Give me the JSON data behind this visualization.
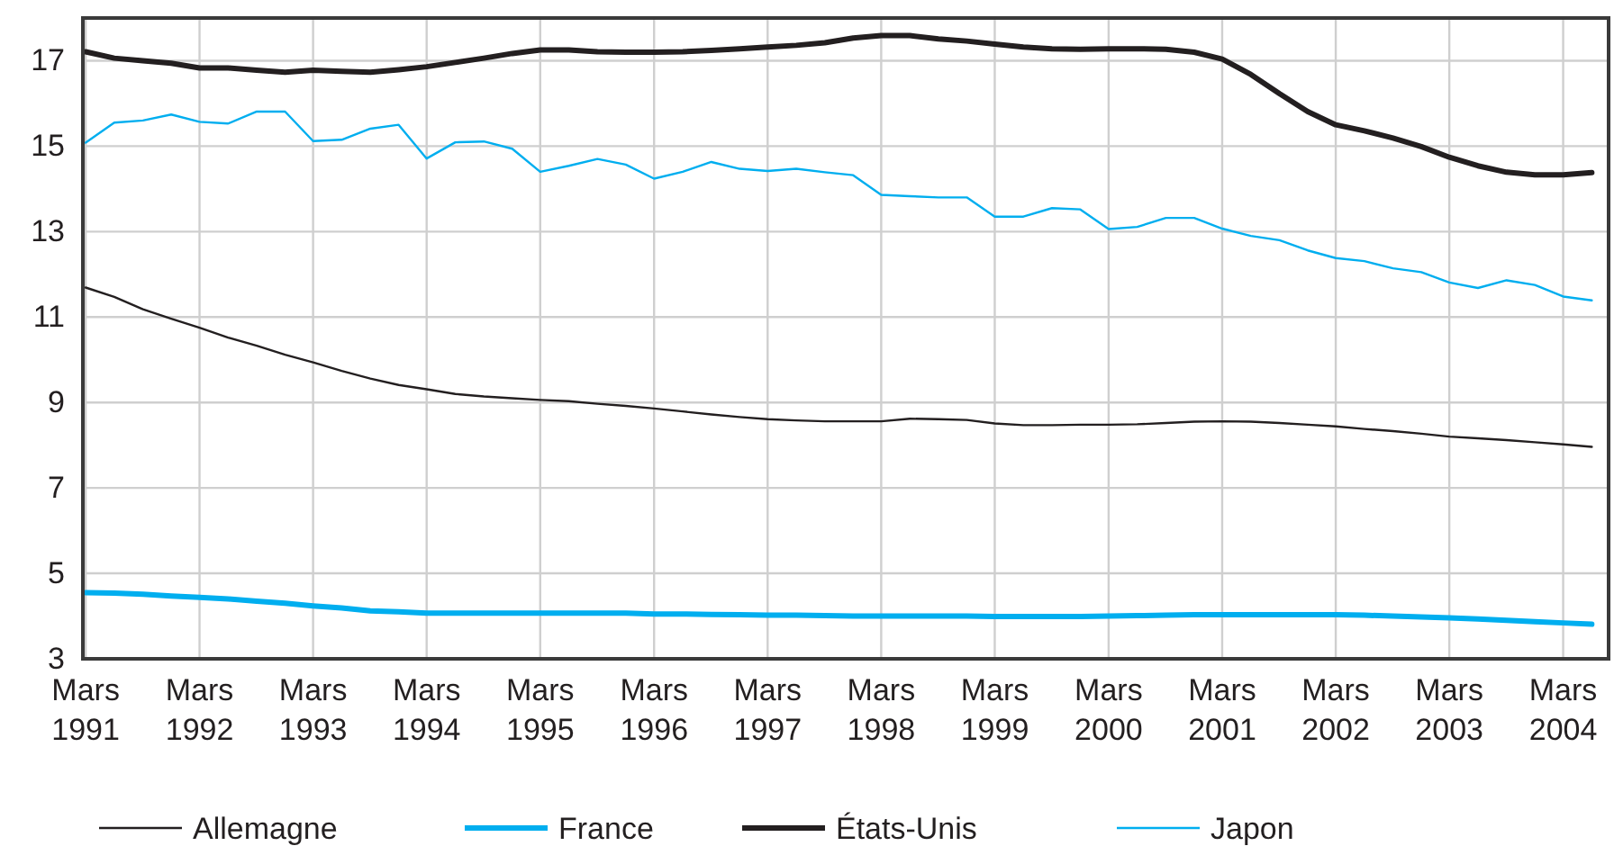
{
  "chart_data": {
    "type": "line",
    "x": [
      "1991-03",
      "1991-06",
      "1991-09",
      "1991-12",
      "1992-03",
      "1992-06",
      "1992-09",
      "1992-12",
      "1993-03",
      "1993-06",
      "1993-09",
      "1993-12",
      "1994-03",
      "1994-06",
      "1994-09",
      "1994-12",
      "1995-03",
      "1995-06",
      "1995-09",
      "1995-12",
      "1996-03",
      "1996-06",
      "1996-09",
      "1996-12",
      "1997-03",
      "1997-06",
      "1997-09",
      "1997-12",
      "1998-03",
      "1998-06",
      "1998-09",
      "1998-12",
      "1999-03",
      "1999-06",
      "1999-09",
      "1999-12",
      "2000-03",
      "2000-06",
      "2000-09",
      "2000-12",
      "2001-03",
      "2001-06",
      "2001-09",
      "2001-12",
      "2002-03",
      "2002-06",
      "2002-09",
      "2002-12",
      "2003-03",
      "2003-06",
      "2003-09",
      "2003-12",
      "2004-03",
      "2004-06"
    ],
    "series": [
      {
        "name": "Allemagne",
        "color": "#231f20",
        "values": [
          11.69,
          11.47,
          11.18,
          10.96,
          10.75,
          10.52,
          10.33,
          10.12,
          9.94,
          9.74,
          9.56,
          9.41,
          9.31,
          9.2,
          9.14,
          9.1,
          9.06,
          9.03,
          8.97,
          8.92,
          8.86,
          8.79,
          8.72,
          8.66,
          8.61,
          8.58,
          8.56,
          8.56,
          8.56,
          8.62,
          8.61,
          8.59,
          8.51,
          8.47,
          8.47,
          8.48,
          8.48,
          8.49,
          8.52,
          8.55,
          8.56,
          8.55,
          8.52,
          8.48,
          8.44,
          8.38,
          8.33,
          8.27,
          8.2,
          8.16,
          8.12,
          8.07,
          8.02,
          7.96
        ]
      },
      {
        "name": "France",
        "color": "#00aeef",
        "values": [
          4.55,
          4.54,
          4.51,
          4.47,
          4.44,
          4.4,
          4.35,
          4.3,
          4.24,
          4.19,
          4.12,
          4.1,
          4.07,
          4.07,
          4.07,
          4.07,
          4.07,
          4.07,
          4.07,
          4.07,
          4.05,
          4.05,
          4.04,
          4.03,
          4.02,
          4.02,
          4.01,
          4.0,
          4.0,
          4.0,
          4.0,
          4.0,
          3.99,
          3.99,
          3.99,
          3.99,
          4.0,
          4.01,
          4.02,
          4.03,
          4.03,
          4.03,
          4.03,
          4.03,
          4.03,
          4.02,
          4.0,
          3.98,
          3.96,
          3.93,
          3.9,
          3.87,
          3.84,
          3.81
        ]
      },
      {
        "name": "États-Unis",
        "color": "#231f20",
        "values": [
          17.21,
          17.06,
          17.0,
          16.94,
          16.83,
          16.83,
          16.78,
          16.73,
          16.78,
          16.75,
          16.73,
          16.79,
          16.86,
          16.96,
          17.06,
          17.17,
          17.25,
          17.25,
          17.21,
          17.2,
          17.2,
          17.21,
          17.24,
          17.28,
          17.32,
          17.36,
          17.42,
          17.53,
          17.59,
          17.59,
          17.51,
          17.46,
          17.39,
          17.32,
          17.28,
          17.27,
          17.28,
          17.28,
          17.27,
          17.2,
          17.04,
          16.68,
          16.23,
          15.81,
          15.5,
          15.36,
          15.19,
          14.99,
          14.74,
          14.54,
          14.39,
          14.33,
          14.33,
          14.38
        ]
      },
      {
        "name": "Japon",
        "color": "#00aeef",
        "values": [
          15.08,
          15.55,
          15.6,
          15.74,
          15.57,
          15.53,
          15.81,
          15.81,
          15.12,
          15.15,
          15.41,
          15.5,
          14.71,
          15.09,
          15.11,
          14.94,
          14.4,
          14.54,
          14.7,
          14.57,
          14.24,
          14.4,
          14.63,
          14.47,
          14.42,
          14.47,
          14.39,
          14.32,
          13.86,
          13.83,
          13.8,
          13.8,
          13.35,
          13.35,
          13.55,
          13.52,
          13.06,
          13.11,
          13.32,
          13.32,
          13.07,
          12.9,
          12.8,
          12.56,
          12.38,
          12.31,
          12.14,
          12.05,
          11.81,
          11.68,
          11.86,
          11.75,
          11.48,
          11.39
        ]
      }
    ],
    "xlim": [
      "1991-02-20",
      "2004-07-25"
    ],
    "xticks": [
      {
        "value": "1991-03",
        "label": "Mars 1991"
      },
      {
        "value": "1992-03",
        "label": "Mars 1992"
      },
      {
        "value": "1993-03",
        "label": "Mars 1993"
      },
      {
        "value": "1994-03",
        "label": "Mars 1994"
      },
      {
        "value": "1995-03",
        "label": "Mars 1995"
      },
      {
        "value": "1996-03",
        "label": "Mars 1996"
      },
      {
        "value": "1997-03",
        "label": "Mars 1997"
      },
      {
        "value": "1998-03",
        "label": "Mars 1998"
      },
      {
        "value": "1999-03",
        "label": "Mars 1999"
      },
      {
        "value": "2000-03",
        "label": "Mars 2000"
      },
      {
        "value": "2001-03",
        "label": "Mars 2001"
      },
      {
        "value": "2002-03",
        "label": "Mars 2002"
      },
      {
        "value": "2003-03",
        "label": "Mars 2003"
      },
      {
        "value": "2004-03",
        "label": "Mars 2004"
      }
    ],
    "ylim": [
      3,
      18
    ],
    "yticks": [
      3,
      5,
      7,
      9,
      11,
      13,
      15,
      17
    ],
    "grid": true,
    "legend": "bottom"
  }
}
